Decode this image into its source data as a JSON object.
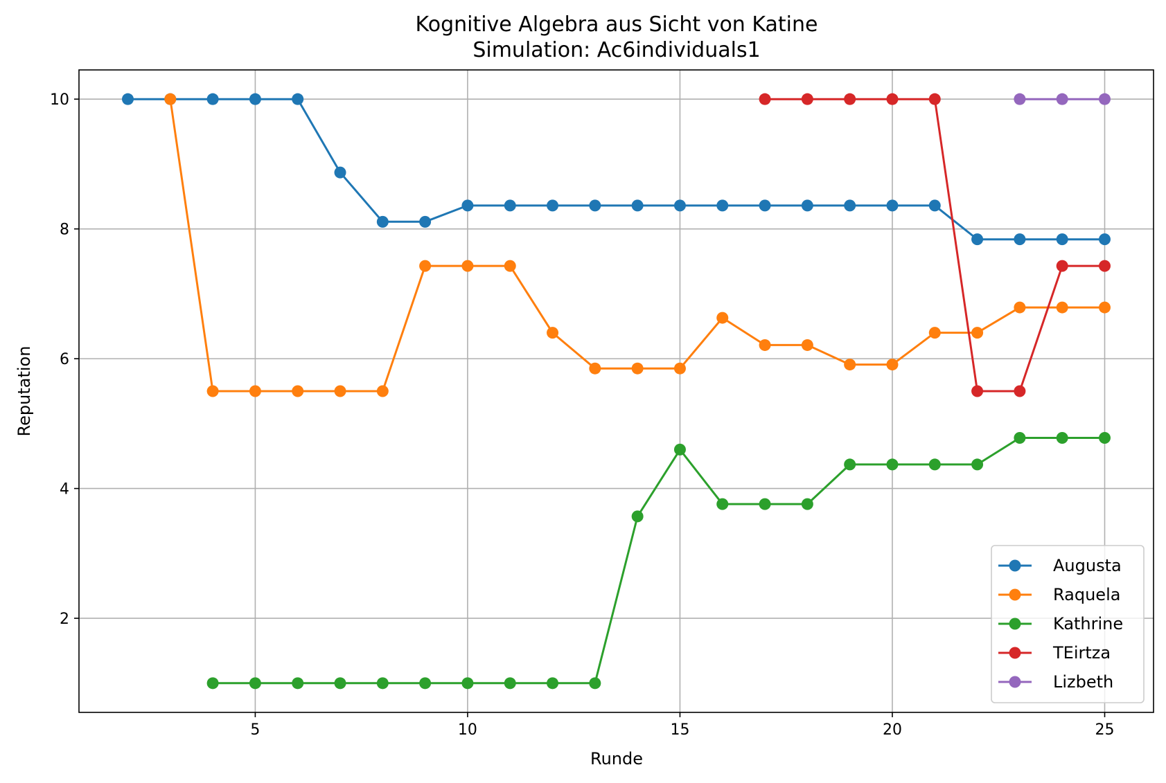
{
  "chart_data": {
    "type": "line",
    "title": "Kognitive Algebra aus Sicht von Katine",
    "subtitle": "Simulation: Ac6individuals1",
    "xlabel": "Runde",
    "ylabel": "Reputation",
    "xlim": [
      0.85,
      26.15
    ],
    "ylim": [
      0.55,
      10.45
    ],
    "xticks": [
      5,
      10,
      15,
      20,
      25
    ],
    "yticks": [
      2,
      4,
      6,
      8,
      10
    ],
    "grid": true,
    "legend_position": "lower right",
    "series": [
      {
        "name": "Augusta",
        "color": "#1f77b4",
        "x": [
          2,
          3,
          4,
          5,
          6,
          7,
          8,
          9,
          10,
          11,
          12,
          13,
          14,
          15,
          16,
          17,
          18,
          19,
          20,
          21,
          22,
          23,
          24,
          25
        ],
        "y": [
          10,
          10,
          10,
          10,
          10,
          8.87,
          8.11,
          8.11,
          8.36,
          8.36,
          8.36,
          8.36,
          8.36,
          8.36,
          8.36,
          8.36,
          8.36,
          8.36,
          8.36,
          8.36,
          7.84,
          7.84,
          7.84,
          7.84
        ]
      },
      {
        "name": "Raquela",
        "color": "#ff7f0e",
        "x": [
          3,
          4,
          5,
          6,
          7,
          8,
          9,
          10,
          11,
          12,
          13,
          14,
          15,
          16,
          17,
          18,
          19,
          20,
          21,
          22,
          23,
          24,
          25
        ],
        "y": [
          10,
          5.5,
          5.5,
          5.5,
          5.5,
          5.5,
          7.43,
          7.43,
          7.43,
          6.4,
          5.85,
          5.85,
          5.85,
          6.63,
          6.21,
          6.21,
          5.91,
          5.91,
          6.4,
          6.4,
          6.79,
          6.79,
          6.79
        ]
      },
      {
        "name": "Kathrine",
        "color": "#2ca02c",
        "x": [
          4,
          5,
          6,
          7,
          8,
          9,
          10,
          11,
          12,
          13,
          14,
          15,
          16,
          17,
          18,
          19,
          20,
          21,
          22,
          23,
          24,
          25
        ],
        "y": [
          1,
          1,
          1,
          1,
          1,
          1,
          1,
          1,
          1,
          1,
          3.57,
          4.6,
          3.76,
          3.76,
          3.76,
          4.37,
          4.37,
          4.37,
          4.37,
          4.78,
          4.78,
          4.78
        ]
      },
      {
        "name": "TEirtza",
        "color": "#d62728",
        "x": [
          17,
          18,
          19,
          20,
          21,
          22,
          23,
          24,
          25
        ],
        "y": [
          10,
          10,
          10,
          10,
          10,
          5.5,
          5.5,
          7.43,
          7.43
        ]
      },
      {
        "name": "Lizbeth",
        "color": "#9467bd",
        "x": [
          23,
          24,
          25
        ],
        "y": [
          10,
          10,
          10
        ]
      }
    ]
  }
}
